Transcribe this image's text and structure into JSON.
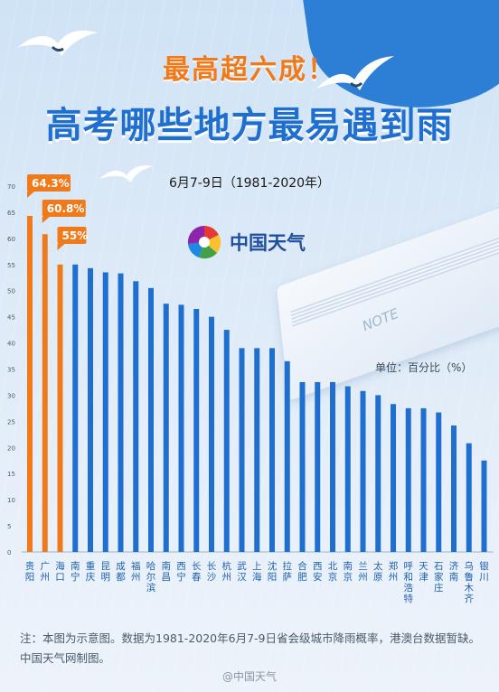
{
  "header": {
    "headline": "最高超六成！",
    "title": "高考哪些地方最易遇到雨",
    "subtitle": "6月7-9日（1981-2020年）"
  },
  "logo": {
    "text": "中国天气"
  },
  "unit_label": "单位：百分比（%）",
  "footnote": "注：本图为示意图。数据为1981-2020年6月7-9日省会级城市降雨概率，港澳台数据暂缺。中国天气网制图。",
  "watermark": "@中国天气",
  "decor": {
    "note_text": "NOTE"
  },
  "colors": {
    "highlight": "#f07a1a",
    "bar": "#1f6fd1",
    "headline": "#f07a1a",
    "title": "#1f6fd1"
  },
  "chart_data": {
    "type": "bar",
    "ylim": [
      0,
      70
    ],
    "yticks": [
      0,
      5,
      10,
      15,
      20,
      25,
      30,
      35,
      40,
      45,
      50,
      55,
      60,
      65,
      70
    ],
    "categories": [
      "贵阳",
      "广州",
      "海口",
      "南宁",
      "重庆",
      "昆明",
      "成都",
      "福州",
      "哈尔滨",
      "南昌",
      "西宁",
      "长春",
      "长沙",
      "杭州",
      "武汉",
      "上海",
      "沈阳",
      "拉萨",
      "合肥",
      "西安",
      "北京",
      "南京",
      "兰州",
      "太原",
      "郑州",
      "呼和浩特",
      "天津",
      "石家庄",
      "济南",
      "乌鲁木齐",
      "银川"
    ],
    "values": [
      64.3,
      60.8,
      55,
      55,
      54.3,
      53.5,
      53.3,
      51.8,
      50.5,
      47.5,
      47.3,
      46.5,
      45,
      42.5,
      39,
      39,
      39,
      36.5,
      32.5,
      32.5,
      32.5,
      31.7,
      30.8,
      30,
      28.3,
      27.5,
      27.5,
      26.7,
      24.2,
      20.8,
      17.5
    ],
    "highlight_labels": [
      "64.3%",
      "60.8%",
      "55%"
    ]
  }
}
